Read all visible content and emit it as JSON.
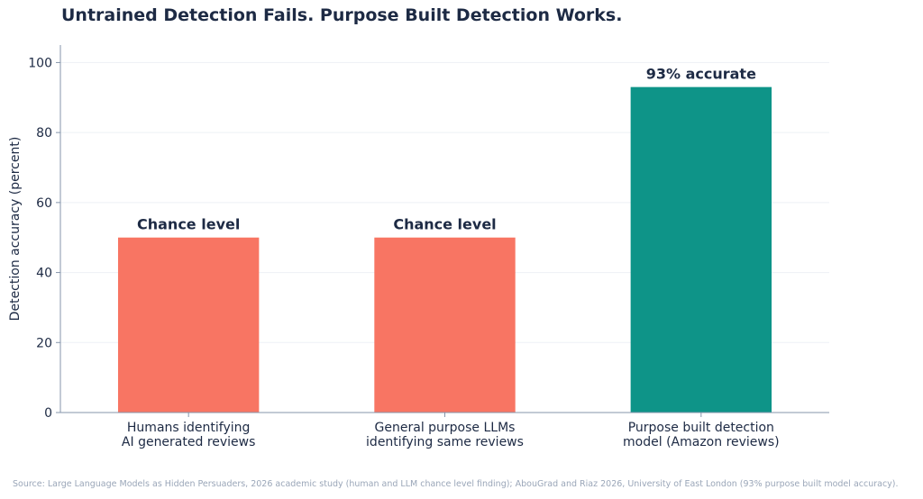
{
  "chart_data": {
    "type": "bar",
    "title": "Untrained Detection Fails. Purpose Built Detection Works.",
    "ylabel": "Detection accuracy (percent)",
    "xlabel": "",
    "ylim": [
      0,
      105
    ],
    "yticks": [
      0,
      20,
      40,
      60,
      80,
      100
    ],
    "grid": true,
    "categories": [
      [
        "Humans identifying",
        "AI generated reviews"
      ],
      [
        "General purpose LLMs",
        "identifying same reviews"
      ],
      [
        "Purpose built detection",
        "model (Amazon reviews)"
      ]
    ],
    "values": [
      50,
      50,
      93
    ],
    "bar_labels": [
      "Chance level",
      "Chance level",
      "93% accurate"
    ],
    "colors": [
      "#f87563",
      "#f87563",
      "#0e9488"
    ],
    "source": "Source: Large Language Models as Hidden Persuaders, 2026 academic study (human and LLM chance level finding); AbouGrad and Riaz 2026, University of East London (93% purpose built model accuracy)."
  }
}
